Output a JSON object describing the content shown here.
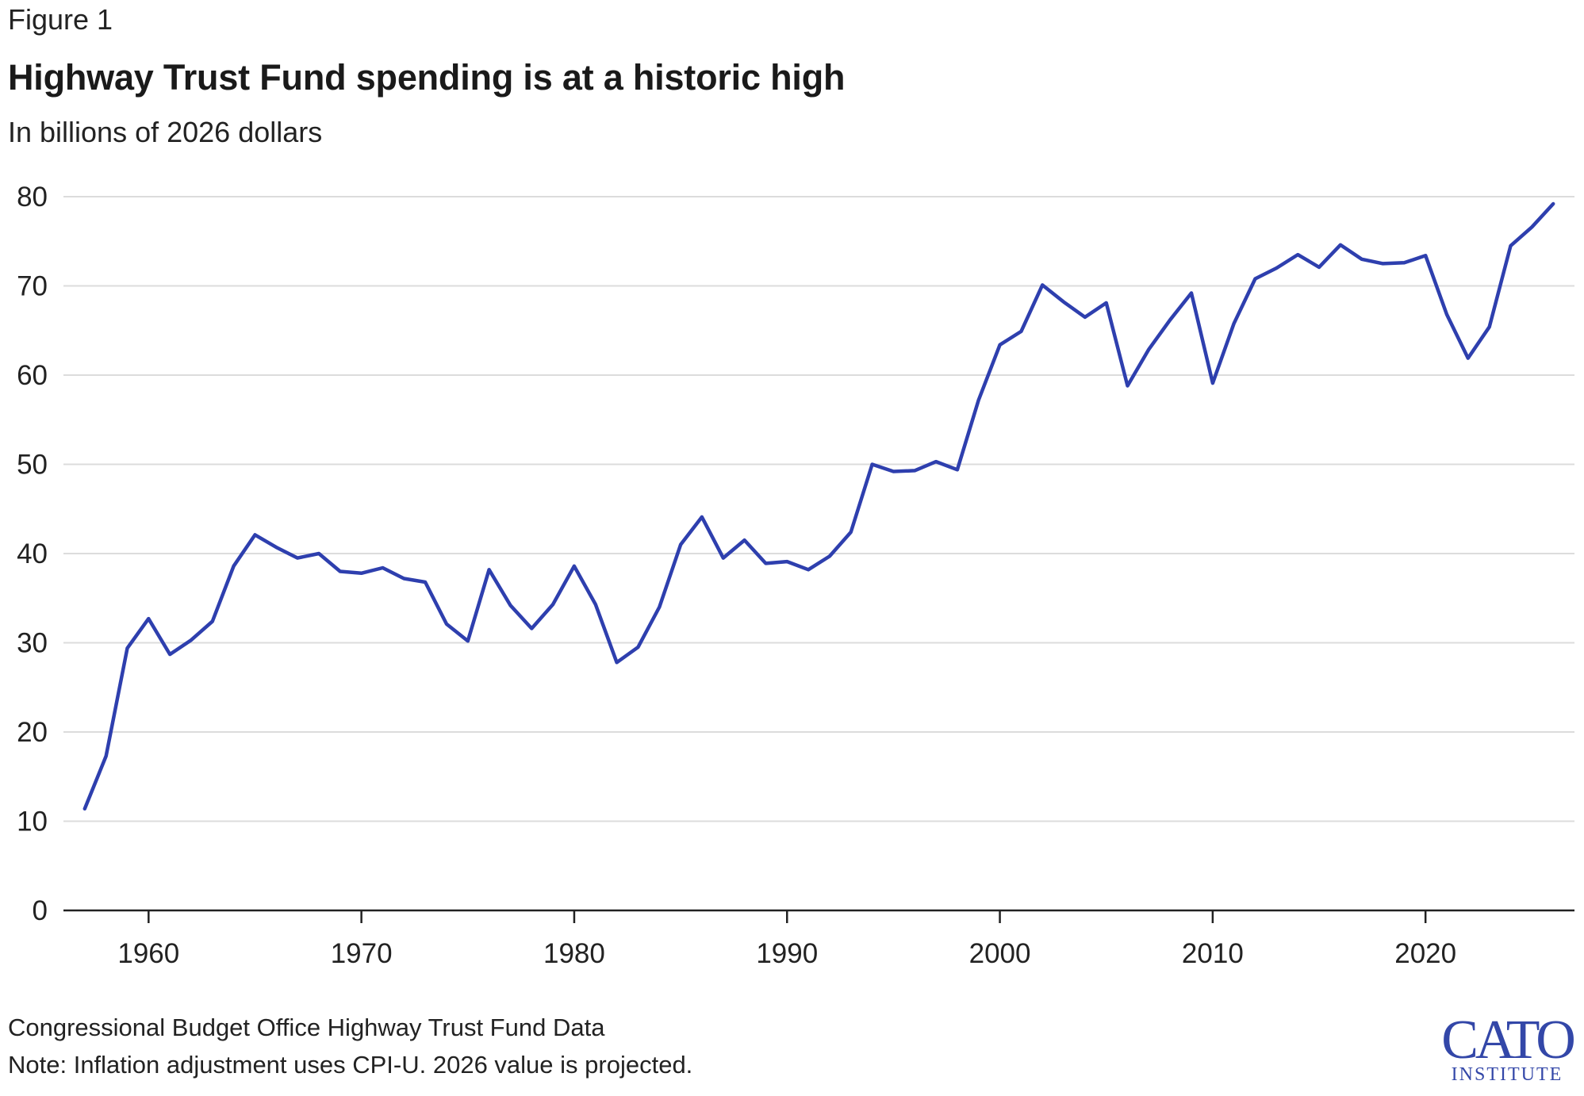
{
  "figure_label": "Figure 1",
  "chart_data": {
    "type": "line",
    "title": "Highway Trust Fund spending is at a historic high",
    "subtitle": "In billions of 2026 dollars",
    "xlabel": "",
    "ylabel": "",
    "xlim": [
      1956,
      2027
    ],
    "ylim": [
      0,
      80
    ],
    "yticks": [
      0,
      10,
      20,
      30,
      40,
      50,
      60,
      70,
      80
    ],
    "xticks": [
      1960,
      1970,
      1980,
      1990,
      2000,
      2010,
      2020
    ],
    "grid": "horizontal",
    "line_color": "#2e3fae",
    "series": [
      {
        "x": [
          1957,
          1958,
          1959,
          1960,
          1961,
          1962,
          1963,
          1964,
          1965,
          1966,
          1967,
          1968,
          1969,
          1970,
          1971,
          1972,
          1973,
          1974,
          1975,
          1976,
          1977,
          1978,
          1979,
          1980,
          1981,
          1982,
          1983,
          1984,
          1985,
          1986,
          1987,
          1988,
          1989,
          1990,
          1991,
          1992,
          1993,
          1994,
          1995,
          1996,
          1997,
          1998,
          1999,
          2000,
          2001,
          2002,
          2003,
          2004,
          2005,
          2006,
          2007,
          2008,
          2009,
          2010,
          2011,
          2012,
          2013,
          2014,
          2015,
          2016,
          2017,
          2018,
          2019,
          2020,
          2021,
          2022,
          2023,
          2024,
          2025,
          2026
        ],
        "y": [
          11.4,
          17.3,
          29.4,
          32.7,
          28.7,
          30.3,
          32.4,
          38.6,
          42.1,
          40.7,
          39.5,
          40.0,
          38.0,
          37.8,
          38.4,
          37.2,
          36.8,
          32.1,
          30.2,
          38.2,
          34.2,
          31.6,
          34.3,
          38.6,
          34.3,
          27.8,
          29.5,
          34.0,
          41.0,
          44.1,
          39.5,
          41.5,
          38.9,
          39.1,
          38.2,
          39.7,
          42.4,
          50.0,
          49.2,
          49.3,
          50.3,
          49.4,
          57.2,
          63.4,
          64.9,
          70.1,
          68.2,
          66.5,
          68.1,
          58.8,
          62.9,
          66.2,
          69.2,
          59.1,
          65.8,
          70.8,
          72.0,
          73.5,
          72.1,
          74.6,
          73.0,
          72.5,
          72.6,
          73.4,
          66.8,
          61.9,
          65.4,
          74.5,
          76.6,
          79.2
        ]
      }
    ]
  },
  "footer": {
    "source": "Congressional Budget Office Highway Trust Fund Data",
    "note": "Note: Inflation adjustment uses CPI-U. 2026 value is projected."
  },
  "logo": {
    "main": "CATO",
    "sub": "INSTITUTE"
  }
}
